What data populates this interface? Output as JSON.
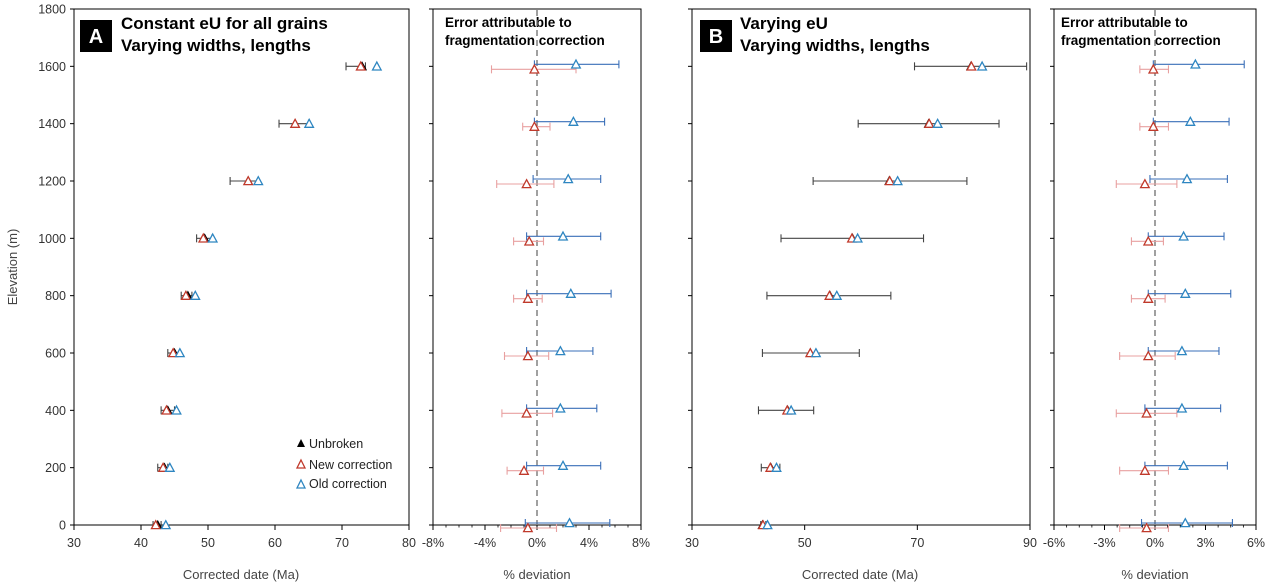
{
  "colors": {
    "unbroken": "#000000",
    "new": "#c0392b",
    "new_error": "#e8a0a0",
    "old": "#2e86c1",
    "old_error": "#3a6fb8",
    "black_error": "#444444",
    "zero_line": "#777777"
  },
  "y_axis": {
    "label": "Elevation (m)",
    "ticks": [
      "0",
      "200",
      "400",
      "600",
      "800",
      "1000",
      "1200",
      "1400",
      "1600",
      "1800"
    ]
  },
  "legend": {
    "unbroken": "Unbroken",
    "new": "New correction",
    "old": "Old correction"
  },
  "panels": {
    "a": {
      "badge": "A",
      "title_line1": "Constant eU for all grains",
      "title_line2": "Varying widths, lengths",
      "xlabel": "Corrected date (Ma)",
      "xticks": [
        "30",
        "40",
        "50",
        "60",
        "70",
        "80"
      ]
    },
    "a_dev": {
      "title_line1": "Error attributable to",
      "title_line2": "fragmentation correction",
      "xlabel": "% deviation",
      "xticks": [
        "-8%",
        "-4%",
        "0%",
        "4%",
        "8%"
      ]
    },
    "b": {
      "badge": "B",
      "title_line1": "Varying eU",
      "title_line2": "Varying widths, lengths",
      "xlabel": "Corrected date (Ma)",
      "xticks": [
        "30",
        "50",
        "70",
        "90"
      ]
    },
    "b_dev": {
      "title_line1": "Error attributable to",
      "title_line2": "fragmentation correction",
      "xlabel": "% deviation",
      "xticks": [
        "-6%",
        "-3%",
        "0%",
        "3%",
        "6%"
      ]
    }
  },
  "chart_data": [
    {
      "type": "scatter",
      "title": "Constant eU for all grains Varying widths, lengths",
      "xlabel": "Corrected date (Ma)",
      "ylabel": "Elevation (m)",
      "xlim": [
        30,
        80
      ],
      "ylim": [
        0,
        1800
      ],
      "elevation": [
        0,
        200,
        400,
        600,
        800,
        1000,
        1200,
        1400,
        1600
      ],
      "series": [
        {
          "name": "Unbroken",
          "x": [
            42.5,
            43.5,
            44,
            45,
            47,
            49.5,
            56,
            63,
            73
          ],
          "err_lo": [
            41.8,
            42.5,
            43,
            44,
            46,
            48.3,
            53.3,
            60.6,
            70.6
          ],
          "err_hi": [
            43,
            44,
            45,
            45.8,
            47.6,
            50.6,
            57.5,
            65,
            73.5
          ]
        },
        {
          "name": "New correction",
          "x": [
            42.2,
            43.3,
            43.8,
            44.8,
            46.7,
            49.3,
            56,
            63,
            72.8
          ]
        },
        {
          "name": "Old correction",
          "x": [
            43.7,
            44.3,
            45.3,
            45.8,
            48.1,
            50.7,
            57.5,
            65.1,
            75.2
          ]
        }
      ]
    },
    {
      "type": "scatter",
      "title": "Error attributable to fragmentation correction",
      "xlabel": "% deviation",
      "ylabel": "Elevation (m)",
      "xlim": [
        -8,
        8
      ],
      "ylim": [
        0,
        1800
      ],
      "elevation": [
        0,
        200,
        400,
        600,
        800,
        1000,
        1200,
        1400,
        1600
      ],
      "series": [
        {
          "name": "New correction",
          "x": [
            -0.7,
            -1,
            -0.8,
            -0.7,
            -0.7,
            -0.6,
            -0.8,
            -0.2,
            -0.2
          ],
          "err_lo": [
            -2.8,
            -2.3,
            -2.7,
            -2.5,
            -1.8,
            -1.8,
            -3.1,
            -1.1,
            -3.5
          ],
          "err_hi": [
            1.5,
            0.5,
            1.2,
            0.9,
            0.4,
            0.5,
            1.3,
            1,
            3
          ]
        },
        {
          "name": "Old correction",
          "x": [
            2.5,
            2,
            1.8,
            1.8,
            2.6,
            2,
            2.4,
            2.8,
            3
          ],
          "err_lo": [
            -0.9,
            -0.8,
            -0.8,
            -0.8,
            -0.8,
            -0.8,
            -0.3,
            -0.2,
            -0.2
          ],
          "err_hi": [
            5.6,
            4.9,
            4.6,
            4.3,
            5.7,
            4.9,
            4.9,
            5.2,
            6.3
          ]
        }
      ]
    },
    {
      "type": "scatter",
      "title": "Varying eU Varying widths, lengths",
      "xlabel": "Corrected date (Ma)",
      "ylabel": "Elevation (m)",
      "xlim": [
        30,
        90
      ],
      "ylim": [
        0,
        1800
      ],
      "elevation": [
        0,
        200,
        400,
        600,
        800,
        1000,
        1200,
        1400,
        1600
      ],
      "series": [
        {
          "name": "Unbroken",
          "x": [
            42.5,
            44,
            47,
            51,
            54.5,
            58.5,
            65,
            72,
            79.5
          ],
          "err_lo": [
            42.2,
            42.3,
            41.8,
            42.5,
            43.3,
            45.8,
            51.5,
            59.5,
            69.5
          ],
          "err_hi": [
            43.1,
            45.6,
            51.6,
            59.7,
            65.3,
            71.1,
            78.8,
            84.5,
            89.4
          ]
        },
        {
          "name": "New correction",
          "x": [
            42.6,
            43.9,
            46.9,
            51,
            54.4,
            58.4,
            65.1,
            72.1,
            79.6
          ]
        },
        {
          "name": "Old correction",
          "x": [
            43.4,
            45,
            47.6,
            52,
            55.7,
            59.4,
            66.5,
            73.6,
            81.5
          ]
        }
      ]
    },
    {
      "type": "scatter",
      "title": "Error attributable to fragmentation correction",
      "xlabel": "% deviation",
      "ylabel": "Elevation (m)",
      "xlim": [
        -6,
        6
      ],
      "ylim": [
        0,
        1800
      ],
      "elevation": [
        0,
        200,
        400,
        600,
        800,
        1000,
        1200,
        1400,
        1600
      ],
      "series": [
        {
          "name": "New correction",
          "x": [
            -0.5,
            -0.6,
            -0.5,
            -0.4,
            -0.4,
            -0.4,
            -0.6,
            -0.1,
            -0.1
          ],
          "err_lo": [
            -2.1,
            -2.1,
            -2.3,
            -2.1,
            -1.4,
            -1.4,
            -2.3,
            -0.9,
            -0.9
          ],
          "err_hi": [
            0.8,
            0.8,
            1.3,
            1.2,
            0.6,
            0.5,
            1.3,
            0.8,
            0.8
          ]
        },
        {
          "name": "Old correction",
          "x": [
            1.8,
            1.7,
            1.6,
            1.6,
            1.8,
            1.7,
            1.9,
            2.1,
            2.4
          ],
          "err_lo": [
            -0.8,
            -0.6,
            -0.6,
            -0.4,
            -0.4,
            -0.4,
            -0.3,
            -0.1,
            -0.1
          ],
          "err_hi": [
            4.6,
            4.3,
            3.9,
            3.8,
            4.5,
            4.1,
            4.3,
            4.4,
            5.3
          ]
        }
      ]
    }
  ]
}
